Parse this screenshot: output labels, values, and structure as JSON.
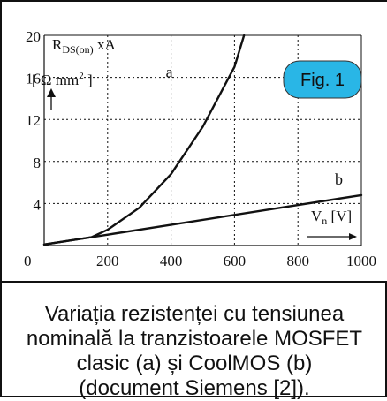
{
  "chart_data": {
    "type": "line",
    "xlabel": "V",
    "xlabel_sub": "n",
    "xlabel_unit": "[V]",
    "ylabel_line1": "R",
    "ylabel_sub": "DS(on)",
    "ylabel_mult": "xA",
    "ylabel_line2_open": "[ Ω mm",
    "ylabel_line2_sup": "2",
    "ylabel_line2_close": " ]",
    "xlim": [
      0,
      1000
    ],
    "ylim": [
      0,
      20
    ],
    "x_ticks": [
      0,
      200,
      400,
      600,
      800,
      1000
    ],
    "y_ticks": [
      4,
      8,
      12,
      16,
      20
    ],
    "series": [
      {
        "name": "a",
        "x": [
          0,
          150,
          200,
          300,
          400,
          500,
          600,
          630
        ],
        "y": [
          0.1,
          0.8,
          1.5,
          3.6,
          6.8,
          11.3,
          17.0,
          20.0
        ]
      },
      {
        "name": "b",
        "x": [
          0,
          150,
          1000
        ],
        "y": [
          0.1,
          0.8,
          4.8
        ]
      }
    ],
    "badge": "Fig. 1",
    "badge_color": "#29b6e6",
    "grid": true
  },
  "caption": [
    "Variația rezistenței cu tensiunea",
    "nominală la tranzistoarele MOSFET",
    "clasic (a) și CoolMOS (b)",
    "(document Siemens [2])."
  ]
}
